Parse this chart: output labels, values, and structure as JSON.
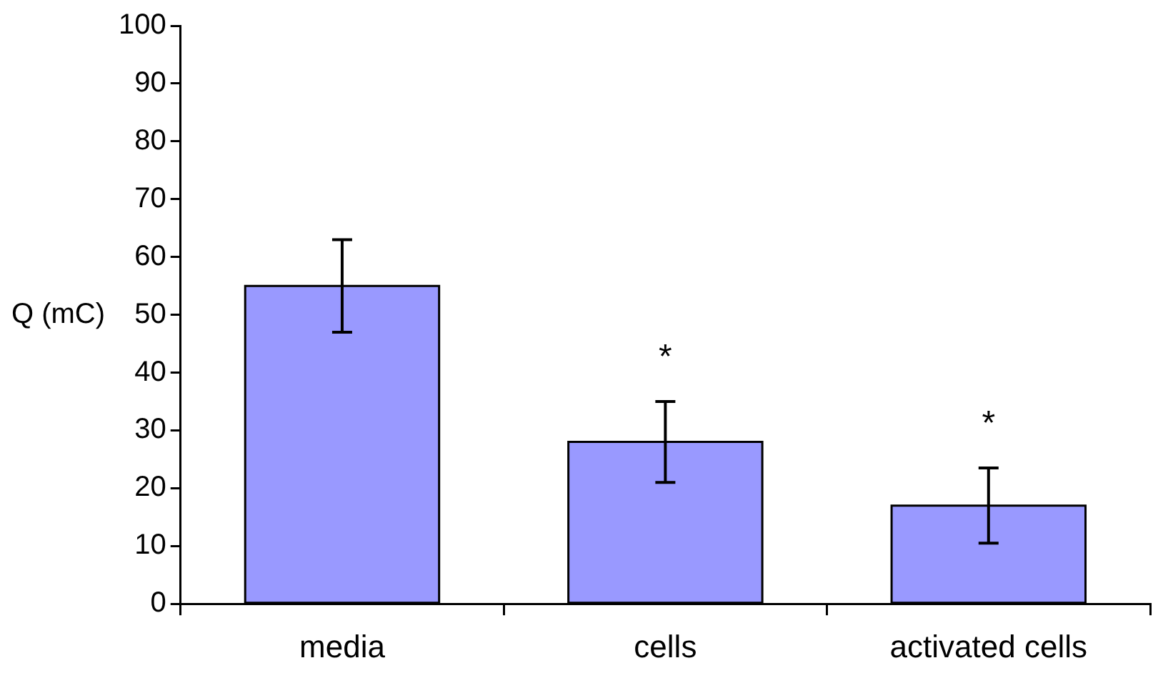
{
  "chart_data": {
    "type": "bar",
    "ylabel": "Q (mC)",
    "categories": [
      "media",
      "cells",
      "activated cells"
    ],
    "values": [
      55,
      28,
      17
    ],
    "color": "#9999ff",
    "errors": [
      8,
      7,
      6.5
    ],
    "ylim": [
      0,
      100
    ],
    "yticks": [
      0,
      10,
      20,
      30,
      40,
      50,
      60,
      70,
      80,
      90,
      100
    ],
    "grid": false,
    "legend": false,
    "annotations": [
      "*",
      "*"
    ]
  }
}
